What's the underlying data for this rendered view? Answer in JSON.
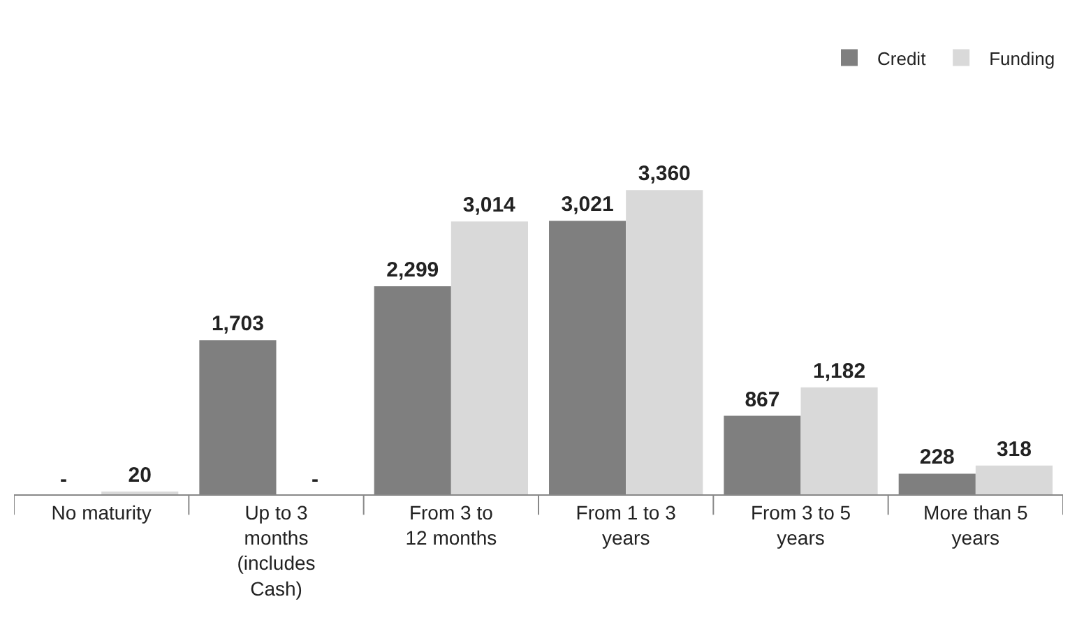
{
  "chart_data": {
    "type": "bar",
    "categories": [
      "No maturity",
      "Up to 3 months (includes Cash)",
      "From 3 to 12 months",
      "From 1 to 3 years",
      "From 3 to 5 years",
      "More than 5 years"
    ],
    "series": [
      {
        "name": "Credit",
        "color": "#7f7f7f",
        "values": [
          null,
          1703,
          2299,
          3021,
          867,
          228
        ],
        "value_labels": [
          "-",
          "1,703",
          "2,299",
          "3,021",
          "867",
          "228"
        ]
      },
      {
        "name": "Funding",
        "color": "#d9d9d9",
        "values": [
          20,
          null,
          3014,
          3360,
          1182,
          318
        ],
        "value_labels": [
          "20",
          "-",
          "3,014",
          "3,360",
          "1,182",
          "318"
        ]
      }
    ],
    "legend": "top right"
  }
}
